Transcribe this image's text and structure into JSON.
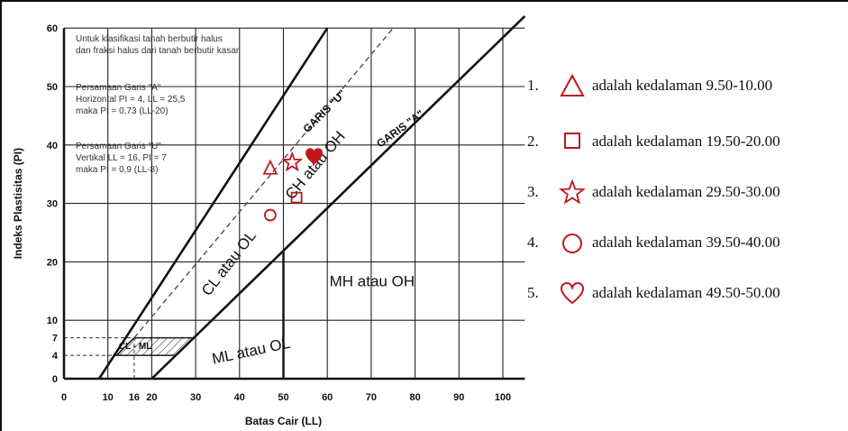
{
  "chart_data": {
    "type": "scatter",
    "xlabel": "Batas Cair (LL)",
    "ylabel": "Indeks Plastisitas (PI)",
    "xlim": [
      0,
      105
    ],
    "ylim": [
      0,
      60
    ],
    "x_ticks": [
      "0",
      "10",
      "16",
      "20",
      "30",
      "40",
      "50",
      "60",
      "70",
      "80",
      "90",
      "100"
    ],
    "y_ticks": [
      "0",
      "4",
      "7",
      "10",
      "20",
      "30",
      "40",
      "50",
      "60"
    ],
    "grid": true,
    "notes": [
      "Untuk klasifikasi tanah berbutir halus",
      "dan fraksi halus dari tanah berbutir kasar",
      "Persamaan Garis \"A\"",
      "Horizontal PI = 4, LL = 25,5",
      "maka PI = 0,73 (LL-20)",
      "Persamaan Garis \"U\"",
      "Vertikal LL = 16, PI = 7",
      "maka PI = 0,9 (LL-8)"
    ],
    "lines": [
      {
        "label": "GARIS \"U\"",
        "points": [
          [
            16,
            7
          ],
          [
            75,
            60
          ]
        ]
      },
      {
        "label": "GARIS \"A\"",
        "points": [
          [
            25.5,
            4
          ],
          [
            102,
            60
          ]
        ]
      }
    ],
    "regions": [
      "CL - ML",
      "ML atau OL",
      "CL atau OL",
      "CH atau OH",
      "MH atau OH"
    ],
    "series": [
      {
        "name": "adalah kedalaman 9.50-10.00",
        "marker": "triangle",
        "x": [
          47
        ],
        "y": [
          36
        ]
      },
      {
        "name": "adalah kedalaman 19.50-20.00",
        "marker": "square",
        "x": [
          53
        ],
        "y": [
          31
        ]
      },
      {
        "name": "adalah kedalaman 29.50-30.00",
        "marker": "star",
        "x": [
          52
        ],
        "y": [
          37
        ]
      },
      {
        "name": "adalah kedalaman 39.50-40.00",
        "marker": "circle",
        "x": [
          47
        ],
        "y": [
          28
        ]
      },
      {
        "name": "adalah kedalaman 49.50-50.00",
        "marker": "heart",
        "x": [
          57
        ],
        "y": [
          38
        ]
      }
    ],
    "marker_color": "#c0171c"
  },
  "legend": {
    "items": [
      {
        "num": "1.",
        "icon": "triangle-icon",
        "text": "adalah kedalaman 9.50-10.00"
      },
      {
        "num": "2.",
        "icon": "square-icon",
        "text": "adalah kedalaman 19.50-20.00"
      },
      {
        "num": "3.",
        "icon": "star-icon",
        "text": "adalah kedalaman 29.50-30.00"
      },
      {
        "num": "4.",
        "icon": "circle-icon",
        "text": "adalah kedalaman 39.50-40.00"
      },
      {
        "num": "5.",
        "icon": "heart-icon",
        "text": "adalah kedalaman 49.50-50.00"
      }
    ]
  }
}
